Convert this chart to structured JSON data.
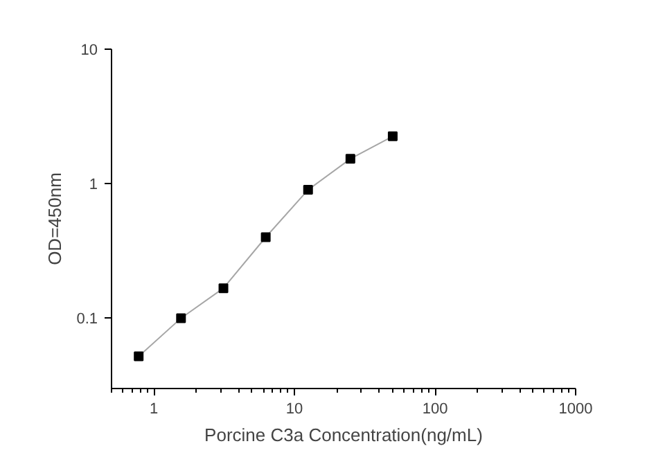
{
  "chart_data": {
    "type": "line",
    "xlabel": "Porcine C3a Concentration(ng/mL)",
    "ylabel": "OD=450nm",
    "log": "xy",
    "marker": "square",
    "line_style": "solid",
    "grid": false,
    "xlim": [
      0.5,
      1000
    ],
    "ylim": [
      0.03,
      10
    ],
    "xticks": [
      1,
      10,
      100,
      1000
    ],
    "yticks": [
      0.1,
      1,
      10
    ],
    "x": [
      0.78,
      1.56,
      3.125,
      6.25,
      12.5,
      25,
      50
    ],
    "series": [
      {
        "color": "#000000",
        "values": [
          0.052,
          0.1,
          0.167,
          0.4,
          0.9,
          1.53,
          2.25
        ]
      }
    ]
  }
}
